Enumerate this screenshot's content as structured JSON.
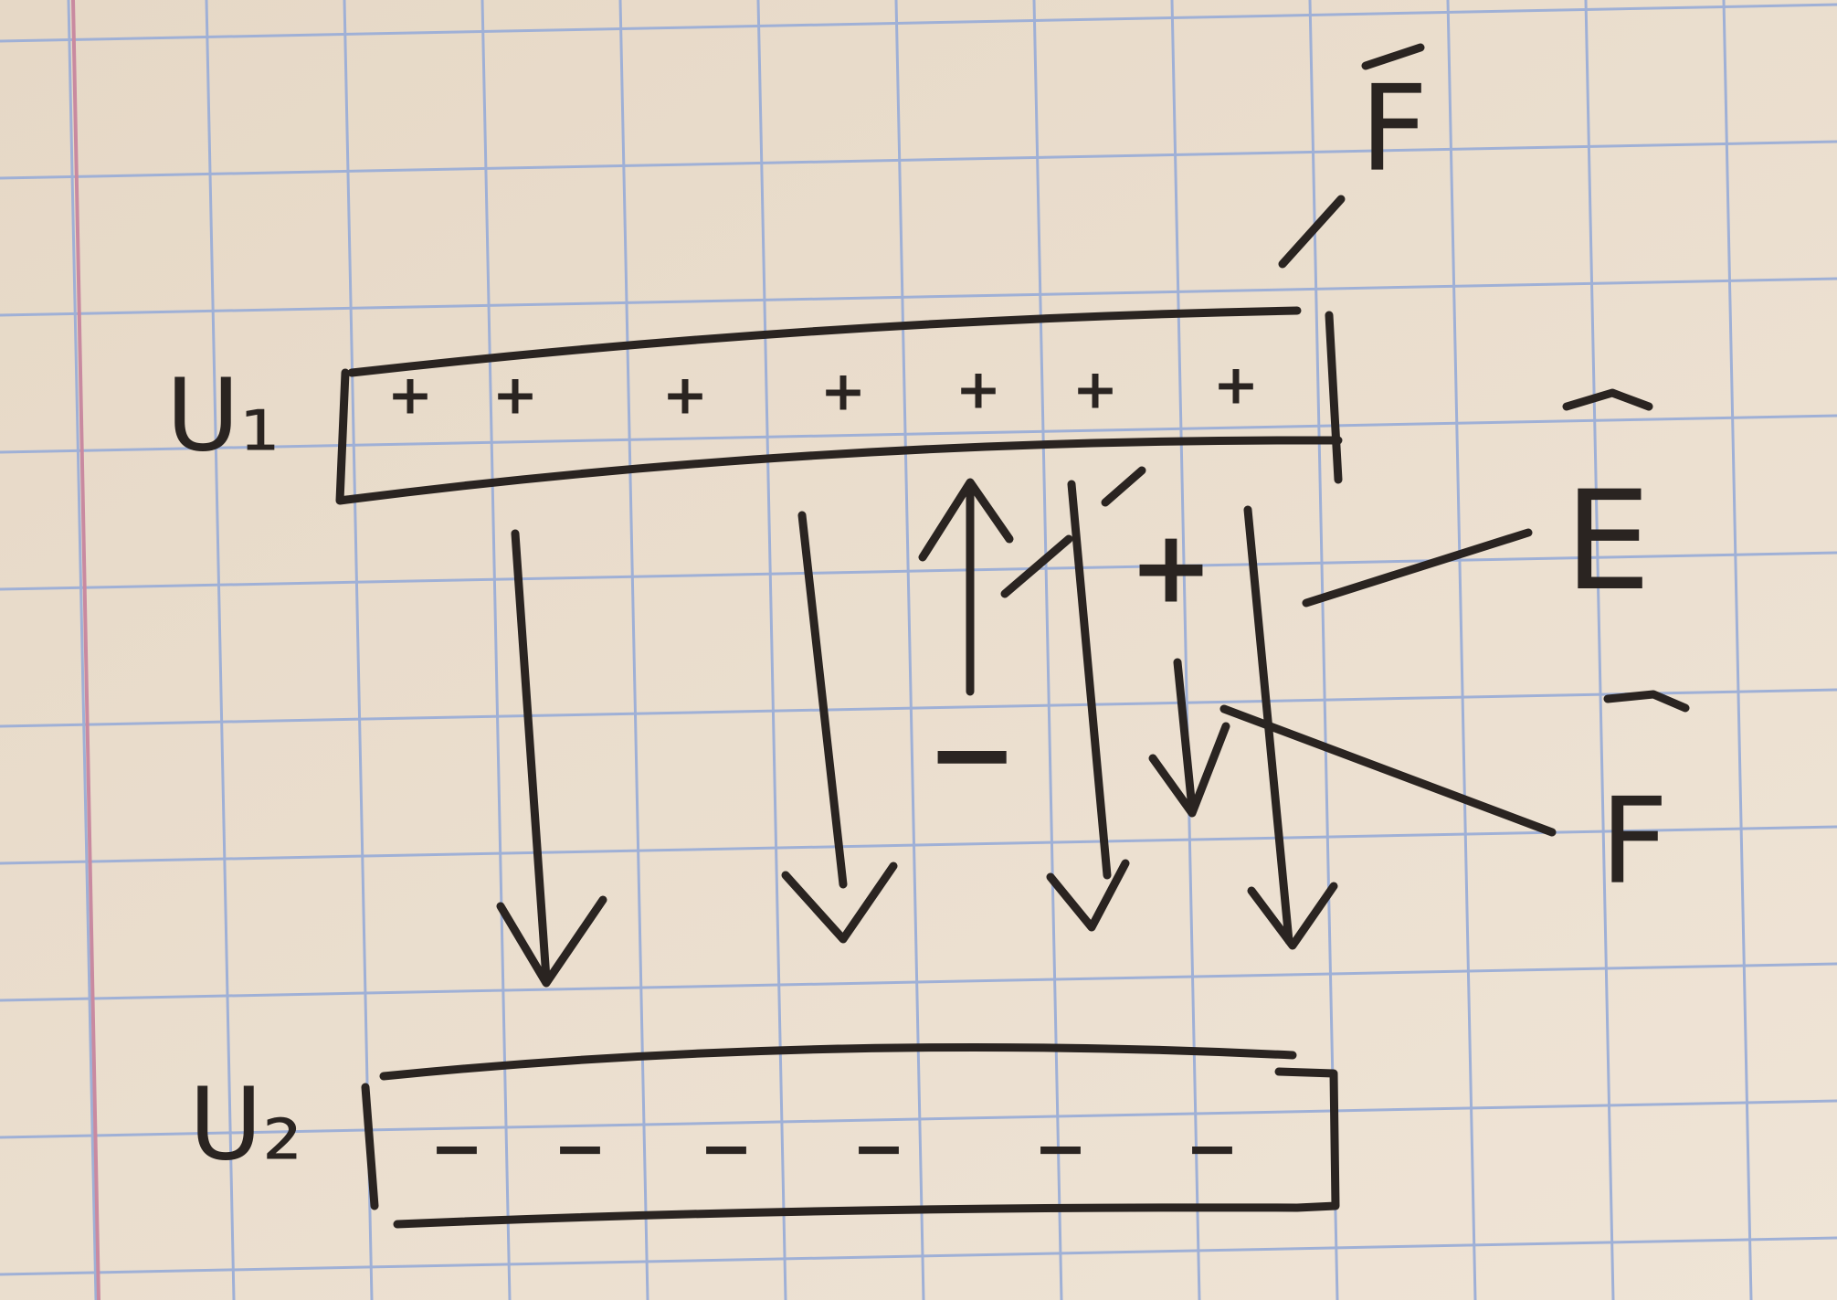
{
  "plates": [
    {
      "label": "U₁",
      "charges": [
        "+",
        "+",
        "+",
        "+",
        "+",
        "+",
        "+"
      ]
    },
    {
      "label": "U₂",
      "charges": [
        "−",
        "−",
        "−",
        "−",
        "−",
        "−"
      ]
    }
  ],
  "field_charges": {
    "positive": "+",
    "negative": "−"
  },
  "vectors": {
    "force_top": "F",
    "field": "E",
    "force_bottom": "F"
  }
}
